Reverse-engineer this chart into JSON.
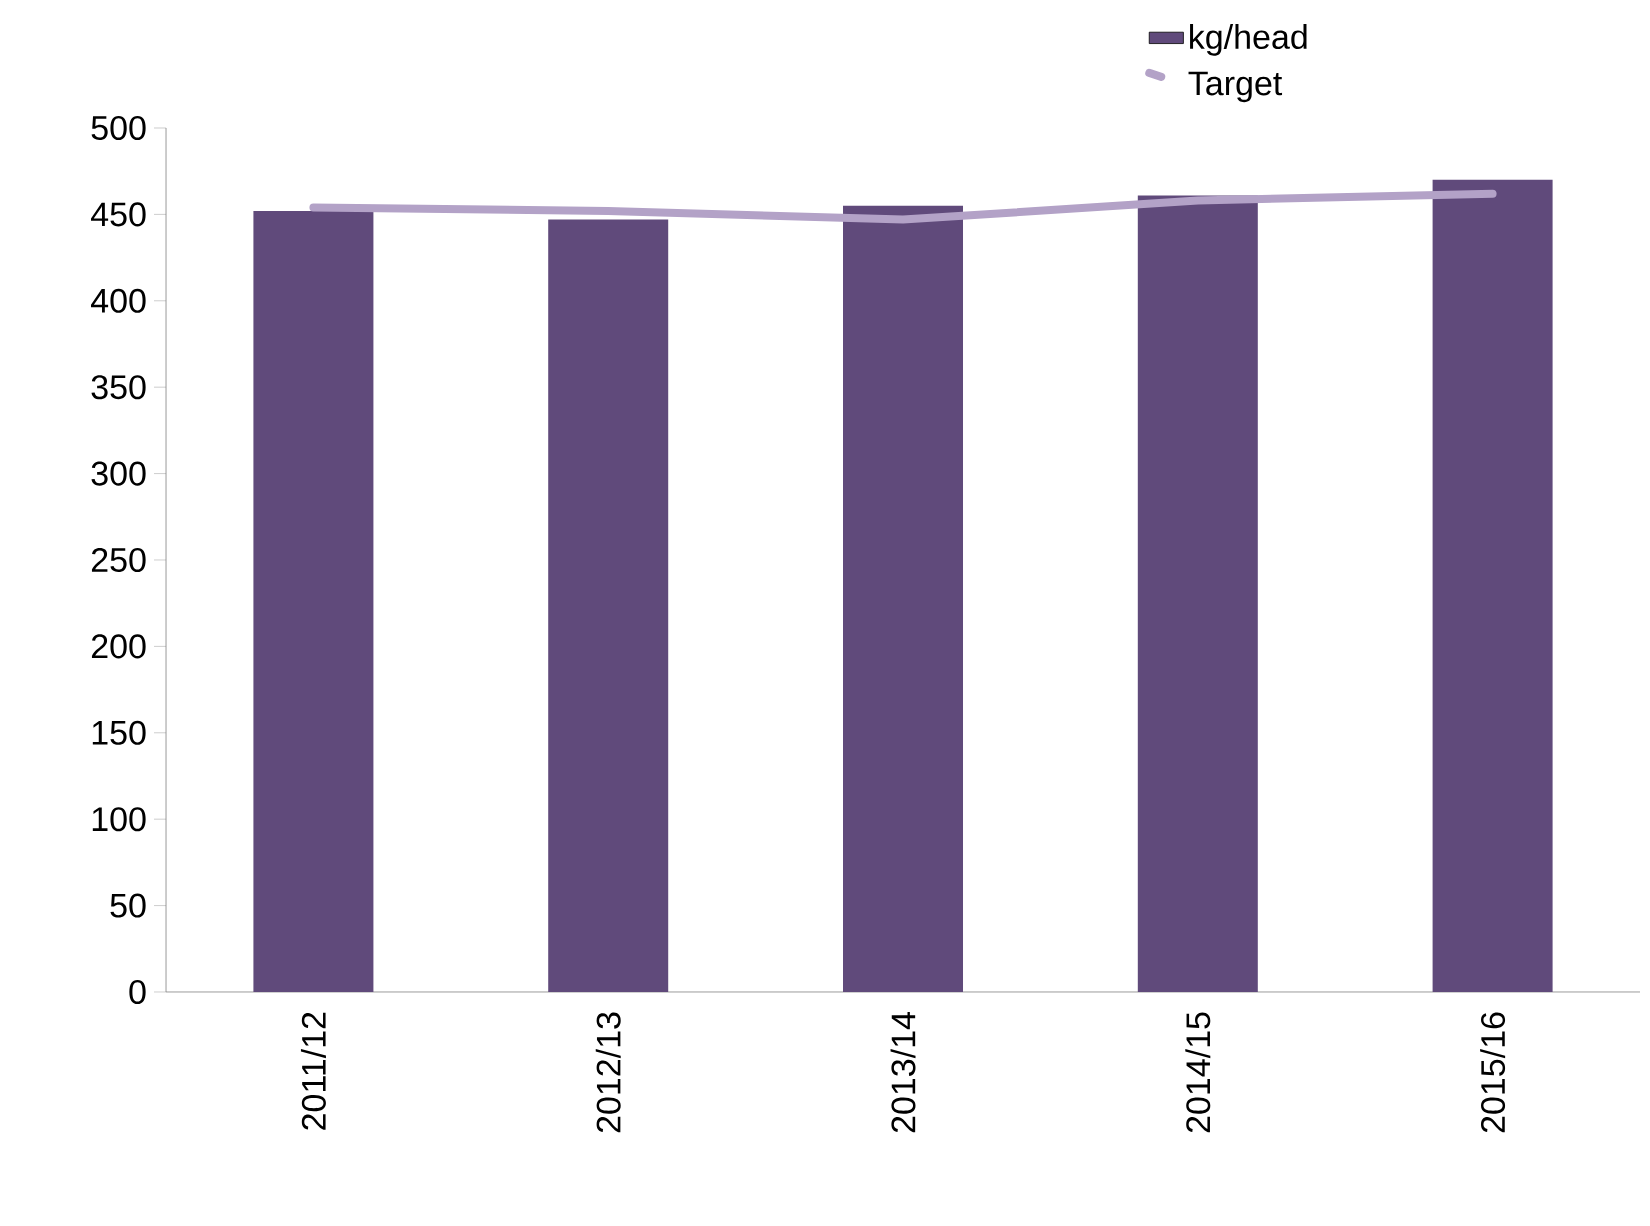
{
  "chart_data": {
    "type": "bar",
    "categories": [
      "2011/12",
      "2012/13",
      "2013/14",
      "2014/15",
      "2015/16"
    ],
    "series": [
      {
        "name": "kg/head",
        "color": "#604a7b",
        "values": [
          452,
          447,
          455,
          461,
          470
        ]
      },
      {
        "name": "Target",
        "type": "line",
        "color": "#b3a2c7",
        "values": [
          454,
          452,
          447,
          458,
          462
        ]
      }
    ],
    "ylim": [
      0,
      500
    ],
    "yticks": [
      0,
      50,
      100,
      150,
      200,
      250,
      300,
      350,
      400,
      450,
      500
    ],
    "grid": false,
    "legend": "top right",
    "marker": "none"
  }
}
